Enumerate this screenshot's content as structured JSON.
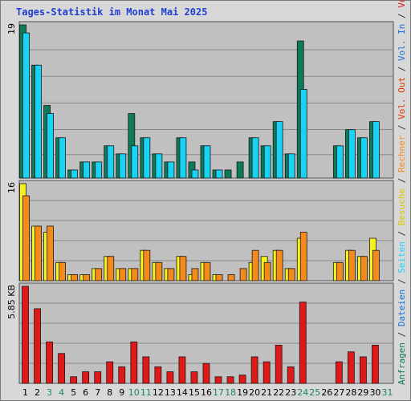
{
  "title": "Tages-Statistik im Monat Mai 2025",
  "colors": {
    "anfragen": "#0d7a5a",
    "dateien": "#1b6fd6",
    "seiten": "#19d3f5",
    "besuche": "#f6f21a",
    "rechner": "#f58a1c",
    "vol_out": "#d63a00",
    "volumen": "#e01818",
    "day_weekday": "#000000",
    "day_weekend": "#1a8a5a",
    "panel_bg": "#c0c0c0",
    "title": "#1f3fd0"
  },
  "legend": {
    "right_text_1": [
      {
        "text": "Anfragen",
        "color": "#0d7a5a"
      },
      {
        "text": " / ",
        "color": "#333333"
      },
      {
        "text": "Dateien",
        "color": "#1b6fd6"
      },
      {
        "text": " / ",
        "color": "#333333"
      },
      {
        "text": "Seiten",
        "color": "#19d3f5"
      },
      {
        "text": " / ",
        "color": "#333333"
      },
      {
        "text": "Besuche",
        "color": "#d8c400"
      },
      {
        "text": " / ",
        "color": "#333333"
      },
      {
        "text": "Rechner",
        "color": "#f58a1c"
      },
      {
        "text": " / ",
        "color": "#333333"
      },
      {
        "text": "Vol. Out",
        "color": "#d63a00"
      },
      {
        "text": " / ",
        "color": "#333333"
      },
      {
        "text": "Vol. In",
        "color": "#1b6fd6"
      },
      {
        "text": " / ",
        "color": "#333333"
      },
      {
        "text": "Volumen",
        "color": "#e01818"
      }
    ]
  },
  "chart_data": [
    {
      "type": "bar",
      "panel": "top",
      "ymax_label": "19",
      "ylim": [
        0,
        19
      ],
      "categories": [
        "1",
        "2",
        "3",
        "4",
        "5",
        "6",
        "7",
        "8",
        "9",
        "10",
        "11",
        "12",
        "13",
        "14",
        "15",
        "16",
        "17",
        "18",
        "19",
        "20",
        "21",
        "22",
        "23",
        "24",
        "25",
        "26",
        "27",
        "28",
        "29",
        "30",
        "31"
      ],
      "series": [
        {
          "name": "Anfragen",
          "values": [
            19,
            14,
            9,
            5,
            1,
            2,
            2,
            4,
            3,
            8,
            5,
            3,
            2,
            5,
            2,
            4,
            1,
            1,
            2,
            5,
            4,
            7,
            3,
            17,
            0,
            0,
            4,
            6,
            5,
            7,
            0
          ]
        },
        {
          "name": "Seiten",
          "values": [
            18,
            14,
            8,
            5,
            1,
            2,
            2,
            4,
            3,
            4,
            5,
            3,
            2,
            5,
            1,
            4,
            1,
            0,
            0,
            5,
            4,
            7,
            3,
            11,
            0,
            0,
            4,
            6,
            5,
            7,
            0
          ]
        }
      ]
    },
    {
      "type": "bar",
      "panel": "middle",
      "ymax_label": "16",
      "ylim": [
        0,
        16
      ],
      "categories": [
        "1",
        "2",
        "3",
        "4",
        "5",
        "6",
        "7",
        "8",
        "9",
        "10",
        "11",
        "12",
        "13",
        "14",
        "15",
        "16",
        "17",
        "18",
        "19",
        "20",
        "21",
        "22",
        "23",
        "24",
        "25",
        "26",
        "27",
        "28",
        "29",
        "30",
        "31"
      ],
      "series": [
        {
          "name": "Besuche",
          "values": [
            16,
            9,
            8,
            3,
            1,
            1,
            2,
            4,
            2,
            2,
            5,
            3,
            2,
            4,
            1,
            3,
            1,
            0,
            0,
            3,
            4,
            5,
            2,
            7,
            0,
            0,
            3,
            5,
            4,
            7,
            0
          ]
        },
        {
          "name": "Rechner",
          "values": [
            14,
            9,
            9,
            3,
            1,
            1,
            2,
            4,
            2,
            2,
            5,
            3,
            2,
            4,
            2,
            3,
            1,
            1,
            2,
            5,
            3,
            5,
            2,
            8,
            0,
            0,
            3,
            5,
            4,
            5,
            0
          ]
        }
      ]
    },
    {
      "type": "bar",
      "panel": "bottom",
      "ymax_label": "5.85 KB",
      "ylim": [
        0,
        5.85
      ],
      "categories": [
        "1",
        "2",
        "3",
        "4",
        "5",
        "6",
        "7",
        "8",
        "9",
        "10",
        "11",
        "12",
        "13",
        "14",
        "15",
        "16",
        "17",
        "18",
        "19",
        "20",
        "21",
        "22",
        "23",
        "24",
        "25",
        "26",
        "27",
        "28",
        "29",
        "30",
        "31"
      ],
      "series": [
        {
          "name": "Volumen",
          "values": [
            5.85,
            4.5,
            2.5,
            1.8,
            0.4,
            0.7,
            0.7,
            1.3,
            1.0,
            2.5,
            1.6,
            1.0,
            0.7,
            1.6,
            0.7,
            1.2,
            0.4,
            0.4,
            0.5,
            1.6,
            1.3,
            2.3,
            1.0,
            4.9,
            0,
            0,
            1.3,
            1.9,
            1.6,
            2.3,
            0
          ]
        }
      ]
    }
  ],
  "weekend_days": [
    "3",
    "4",
    "10",
    "11",
    "17",
    "18",
    "24",
    "25",
    "31"
  ]
}
